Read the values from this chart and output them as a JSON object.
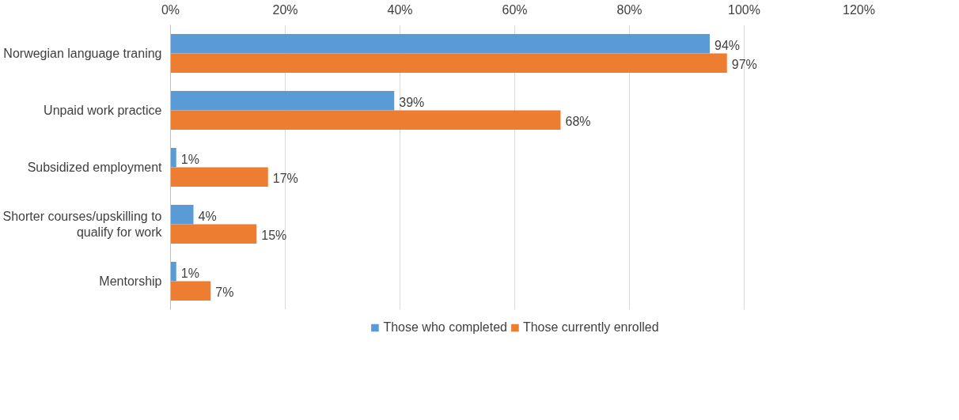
{
  "chart_data": {
    "type": "bar",
    "orientation": "horizontal",
    "categories": [
      "Norwegian language traning",
      "Unpaid work practice",
      "Subsidized employment",
      "Shorter courses/upskilling to\nqualify for work",
      "Mentorship"
    ],
    "series": [
      {
        "name": "Those who completed",
        "color": "#5b9bd5",
        "values": [
          94,
          39,
          1,
          4,
          1
        ],
        "value_labels": [
          "94%",
          "39%",
          "1%",
          "4%",
          "1%"
        ]
      },
      {
        "name": "Those currently enrolled",
        "color": "#ed7d31",
        "values": [
          97,
          68,
          17,
          15,
          7
        ],
        "value_labels": [
          "97%",
          "68%",
          "17%",
          "15%",
          "7%"
        ]
      }
    ],
    "xlim": [
      0,
      120
    ],
    "xticks": [
      {
        "value": 0,
        "label": "0%"
      },
      {
        "value": 20,
        "label": "20%"
      },
      {
        "value": 40,
        "label": "40%"
      },
      {
        "value": 60,
        "label": "60%"
      },
      {
        "value": 80,
        "label": "80%"
      },
      {
        "value": 100,
        "label": "100%"
      },
      {
        "value": 120,
        "label": "120%"
      }
    ],
    "grid": "x",
    "legend": "bottom"
  }
}
